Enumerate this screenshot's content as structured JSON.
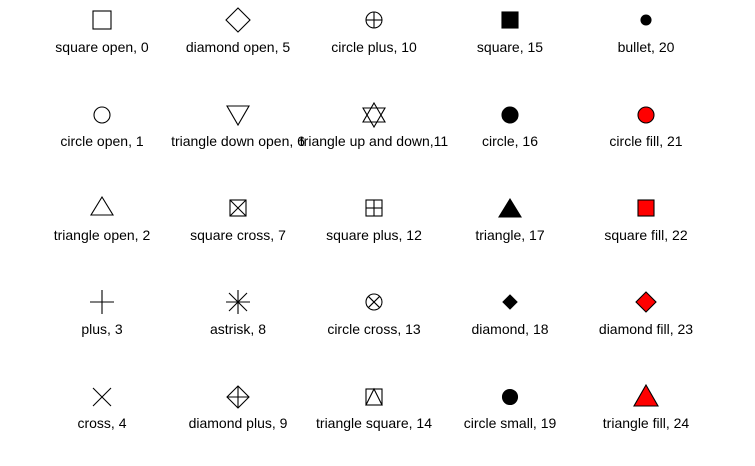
{
  "colors": {
    "stroke": "#000000",
    "fill_black": "#000000",
    "fill_red": "#ff0000",
    "background": "#ffffff"
  },
  "chart_data": {
    "type": "table",
    "layout": "grid",
    "columns": 5,
    "rows": 5,
    "symbols": [
      {
        "code": 0,
        "label": "square open, 0",
        "shape": "square-open",
        "fill": "none"
      },
      {
        "code": 1,
        "label": "circle open, 1",
        "shape": "circle-open",
        "fill": "none"
      },
      {
        "code": 2,
        "label": "triangle open, 2",
        "shape": "triangle-open",
        "fill": "none"
      },
      {
        "code": 3,
        "label": "plus, 3",
        "shape": "plus",
        "fill": "none"
      },
      {
        "code": 4,
        "label": "cross, 4",
        "shape": "cross",
        "fill": "none"
      },
      {
        "code": 5,
        "label": "diamond open, 5",
        "shape": "diamond-open",
        "fill": "none"
      },
      {
        "code": 6,
        "label": "triangle down open, 6",
        "shape": "triangle-down-open",
        "fill": "none"
      },
      {
        "code": 7,
        "label": "square cross, 7",
        "shape": "square-cross",
        "fill": "none"
      },
      {
        "code": 8,
        "label": "astrisk, 8",
        "shape": "asterisk",
        "fill": "none"
      },
      {
        "code": 9,
        "label": "diamond plus, 9",
        "shape": "diamond-plus",
        "fill": "none"
      },
      {
        "code": 10,
        "label": "circle plus, 10",
        "shape": "circle-plus",
        "fill": "none"
      },
      {
        "code": 11,
        "label": "triangle up and down,11",
        "shape": "triangle-up-down",
        "fill": "none"
      },
      {
        "code": 12,
        "label": "square plus, 12",
        "shape": "square-plus",
        "fill": "none"
      },
      {
        "code": 13,
        "label": "circle cross, 13",
        "shape": "circle-cross",
        "fill": "none"
      },
      {
        "code": 14,
        "label": "triangle square, 14",
        "shape": "triangle-square",
        "fill": "none"
      },
      {
        "code": 15,
        "label": "square, 15",
        "shape": "square",
        "fill": "#000000"
      },
      {
        "code": 16,
        "label": "circle, 16",
        "shape": "circle",
        "fill": "#000000"
      },
      {
        "code": 17,
        "label": "triangle, 17",
        "shape": "triangle",
        "fill": "#000000"
      },
      {
        "code": 18,
        "label": "diamond, 18",
        "shape": "diamond",
        "fill": "#000000"
      },
      {
        "code": 19,
        "label": "circle small, 19",
        "shape": "circle-small",
        "fill": "#000000"
      },
      {
        "code": 20,
        "label": "bullet, 20",
        "shape": "bullet",
        "fill": "#000000"
      },
      {
        "code": 21,
        "label": "circle fill, 21",
        "shape": "circle-fill",
        "fill": "#ff0000"
      },
      {
        "code": 22,
        "label": "square fill, 22",
        "shape": "square-fill",
        "fill": "#ff0000"
      },
      {
        "code": 23,
        "label": "diamond fill, 23",
        "shape": "diamond-fill",
        "fill": "#ff0000"
      },
      {
        "code": 24,
        "label": "triangle fill, 24",
        "shape": "triangle-fill",
        "fill": "#ff0000"
      }
    ]
  }
}
